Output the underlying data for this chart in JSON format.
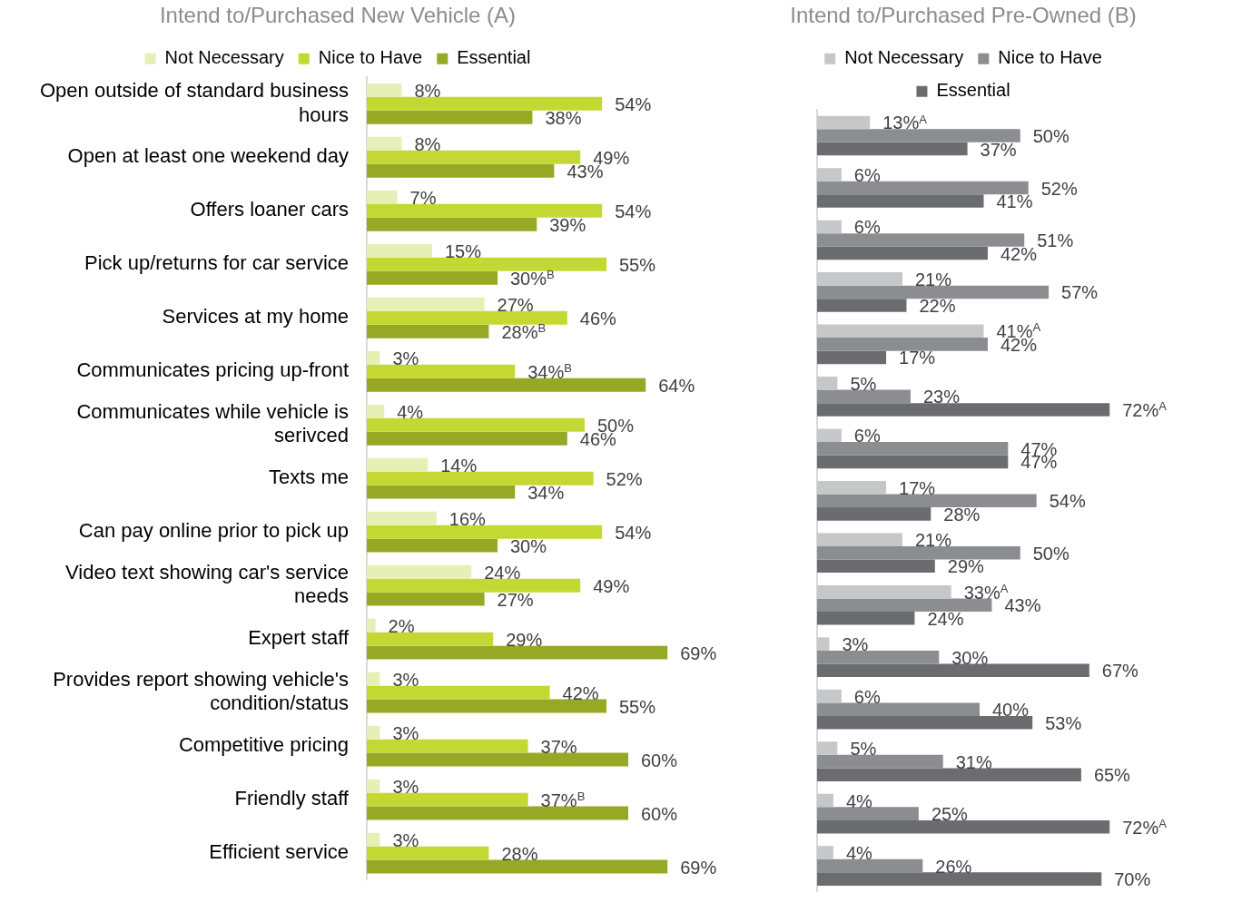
{
  "chart_data": [
    {
      "type": "bar",
      "orientation": "horizontal",
      "title": "Intend to/Purchased New Vehicle (A)",
      "legend": "top",
      "tick_labels": "y",
      "categories": [
        "Open outside of standard business hours",
        "Open at least one weekend day",
        "Offers loaner cars",
        "Pick up/returns for car service",
        "Services at my home",
        "Communicates pricing up-front",
        "Communicates while vehicle is serivced",
        "Texts me",
        "Can pay online prior to pick up",
        "Video text showing car's service needs",
        "Expert staff",
        "Provides report showing vehicle's condition/status",
        "Competitive pricing",
        "Friendly staff",
        "Efficient service"
      ],
      "series": [
        {
          "name": "Not Necessary",
          "color": "#e6efb6",
          "values": [
            8,
            8,
            7,
            15,
            27,
            3,
            4,
            14,
            16,
            24,
            2,
            3,
            3,
            3,
            3
          ],
          "value_labels": [
            "8%",
            "8%",
            "7%",
            "15%",
            "27%",
            "3%",
            "4%",
            "14%",
            "16%",
            "24%",
            "2%",
            "3%",
            "3%",
            "3%",
            "3%"
          ]
        },
        {
          "name": "Nice to Have",
          "color": "#c4d834",
          "values": [
            54,
            49,
            54,
            55,
            46,
            34,
            50,
            52,
            54,
            49,
            29,
            42,
            37,
            37,
            28
          ],
          "value_labels": [
            "54%",
            "49%",
            "54%",
            "55%",
            "46%",
            "34%$^{B}$",
            "50%",
            "52%",
            "54%",
            "49%",
            "29%",
            "42%",
            "37%",
            "37%$^{B}$",
            "28%"
          ]
        },
        {
          "name": "Essential",
          "color": "#97a824",
          "values": [
            38,
            43,
            39,
            30,
            28,
            64,
            46,
            34,
            30,
            27,
            69,
            55,
            60,
            60,
            69
          ],
          "value_labels": [
            "38%",
            "43%",
            "39%",
            "30%$^{B}$",
            "28%$^{B}$",
            "64%",
            "46%",
            "34%",
            "30%",
            "27%",
            "69%",
            "55%",
            "60%",
            "60%",
            "69%"
          ]
        }
      ]
    },
    {
      "type": "bar",
      "orientation": "horizontal",
      "title": "Intend to/Purchased Pre-Owned (B)",
      "legend": "top",
      "tick_labels": false,
      "categories": [
        null,
        null,
        null,
        null,
        null,
        null,
        null,
        null,
        null,
        null,
        null,
        null,
        null,
        null,
        null
      ],
      "series": [
        {
          "name": "Not Necessary",
          "color": "#c6c7c9",
          "values": [
            13,
            6,
            6,
            21,
            41,
            5,
            6,
            17,
            21,
            33,
            3,
            6,
            5,
            4,
            4
          ],
          "value_labels": [
            "13%$^{A}$",
            "6%",
            "6%",
            "21%",
            "41%$^{A}$",
            "5%",
            "6%",
            "17%",
            "21%",
            "33%$^{A}$",
            "3%",
            "6%",
            "5%",
            "4%",
            "4%"
          ]
        },
        {
          "name": "Nice to Have",
          "color": "#8b8d90",
          "values": [
            50,
            52,
            51,
            57,
            42,
            23,
            47,
            54,
            50,
            43,
            30,
            40,
            31,
            25,
            26
          ],
          "value_labels": [
            "50%",
            "52%",
            "51%",
            "57%",
            "42%",
            "23%",
            "47%",
            "54%",
            "50%",
            "43%",
            "30%",
            "40%",
            "31%",
            "25%",
            "26%"
          ]
        },
        {
          "name": "Essential",
          "color": "#6b6c70",
          "values": [
            37,
            41,
            42,
            22,
            17,
            72,
            47,
            28,
            29,
            24,
            67,
            53,
            65,
            72,
            70
          ],
          "value_labels": [
            "37%",
            "41%",
            "42%",
            "22%",
            "17%",
            "72%$^{A}$",
            "47%",
            "28%",
            "29%",
            "24%",
            "67%",
            "53%",
            "65%",
            "72%$^{A}$",
            "70%"
          ]
        }
      ]
    }
  ]
}
